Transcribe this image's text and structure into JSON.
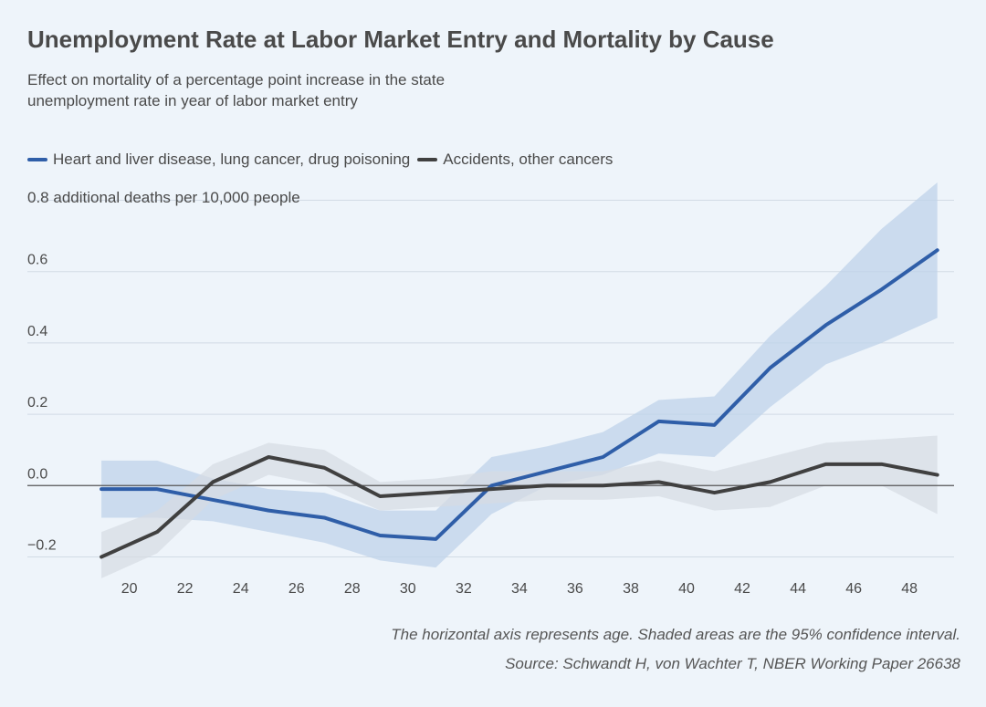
{
  "chart_data": {
    "type": "line",
    "title": "Unemployment Rate at Labor Market Entry and Mortality by Cause",
    "subtitle": "Effect on mortality of a percentage point increase in the state unemployment rate in year of labor market entry",
    "ylabel": "additional deaths per 10,000 people",
    "ylim": [
      -0.25,
      0.85
    ],
    "xlim": [
      18.8,
      49.6
    ],
    "y_ticks": [
      {
        "value": -0.2,
        "label": "−0.2"
      },
      {
        "value": 0.0,
        "label": "0.0"
      },
      {
        "value": 0.2,
        "label": "0.2"
      },
      {
        "value": 0.4,
        "label": "0.4"
      },
      {
        "value": 0.6,
        "label": "0.6"
      },
      {
        "value": 0.8,
        "label": "0.8"
      }
    ],
    "x_ticks": [
      20,
      22,
      24,
      26,
      28,
      30,
      32,
      34,
      36,
      38,
      40,
      42,
      44,
      46,
      48
    ],
    "grid": true,
    "x": [
      19,
      21,
      23,
      25,
      27,
      29,
      31,
      33,
      35,
      37,
      39,
      41,
      43,
      45,
      47,
      49
    ],
    "series": [
      {
        "name": "Heart and liver disease, lung cancer, drug poisoning",
        "color": "#2f5ea8",
        "band_color": "#bfd3ea",
        "values": [
          -0.01,
          -0.01,
          -0.04,
          -0.07,
          -0.09,
          -0.14,
          -0.15,
          0.0,
          0.04,
          0.08,
          0.18,
          0.17,
          0.33,
          0.45,
          0.55,
          0.66
        ],
        "lower": [
          -0.09,
          -0.09,
          -0.1,
          -0.13,
          -0.16,
          -0.21,
          -0.23,
          -0.08,
          0.0,
          0.03,
          0.09,
          0.08,
          0.22,
          0.34,
          0.4,
          0.47
        ],
        "upper": [
          0.07,
          0.07,
          0.02,
          -0.01,
          -0.02,
          -0.07,
          -0.07,
          0.08,
          0.11,
          0.15,
          0.24,
          0.25,
          0.42,
          0.56,
          0.72,
          0.85
        ]
      },
      {
        "name": "Accidents, other cancers",
        "color": "#404040",
        "band_color": "#d6dbe2",
        "values": [
          -0.2,
          -0.13,
          0.01,
          0.08,
          0.05,
          -0.03,
          -0.02,
          -0.01,
          0.0,
          0.0,
          0.01,
          -0.02,
          0.01,
          0.06,
          0.06,
          0.03
        ],
        "lower": [
          -0.26,
          -0.19,
          -0.04,
          0.03,
          0.0,
          -0.07,
          -0.06,
          -0.05,
          -0.04,
          -0.04,
          -0.03,
          -0.07,
          -0.06,
          0.0,
          0.0,
          -0.08
        ],
        "upper": [
          -0.13,
          -0.07,
          0.06,
          0.12,
          0.1,
          0.01,
          0.02,
          0.04,
          0.04,
          0.04,
          0.07,
          0.04,
          0.08,
          0.12,
          0.13,
          0.14
        ]
      }
    ],
    "legend": "top-left",
    "notes": [
      "The horizontal axis represents age. Shaded areas are the 95% confidence interval.",
      "Source: Schwandt H, von Wachter T, NBER Working Paper 26638"
    ]
  }
}
